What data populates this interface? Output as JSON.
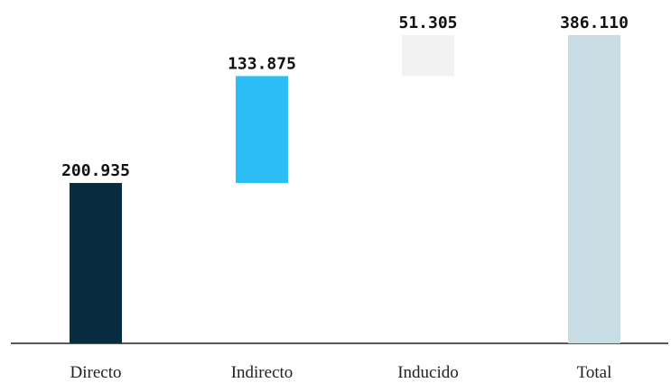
{
  "chart_data": {
    "type": "waterfall",
    "categories": [
      "Directo",
      "Indirecto",
      "Inducido",
      "Total"
    ],
    "values": [
      200935,
      133875,
      51305,
      386110
    ],
    "value_labels": [
      "200.935",
      "133.875",
      "51.305",
      "386.110"
    ],
    "colors": [
      "#082d40",
      "#2bbdf4",
      "#f2f2f2",
      "#c8dce4"
    ],
    "last_is_total": true
  }
}
